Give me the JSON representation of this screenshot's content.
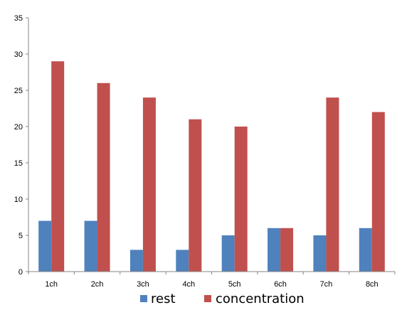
{
  "chart_data": {
    "type": "bar",
    "categories": [
      "1ch",
      "2ch",
      "3ch",
      "4ch",
      "5ch",
      "6ch",
      "7ch",
      "8ch"
    ],
    "series": [
      {
        "name": "rest",
        "color": "#4f81bd",
        "values": [
          7,
          7,
          3,
          3,
          5,
          6,
          5,
          6
        ]
      },
      {
        "name": "concentration",
        "color": "#c0504d",
        "values": [
          29,
          26,
          24,
          21,
          20,
          6,
          24,
          22
        ]
      }
    ],
    "yticks": [
      "0",
      "5",
      "10",
      "15",
      "20",
      "25",
      "30",
      "35"
    ],
    "ylim": [
      0,
      35
    ],
    "grid": false,
    "legend_position": "bottom"
  }
}
